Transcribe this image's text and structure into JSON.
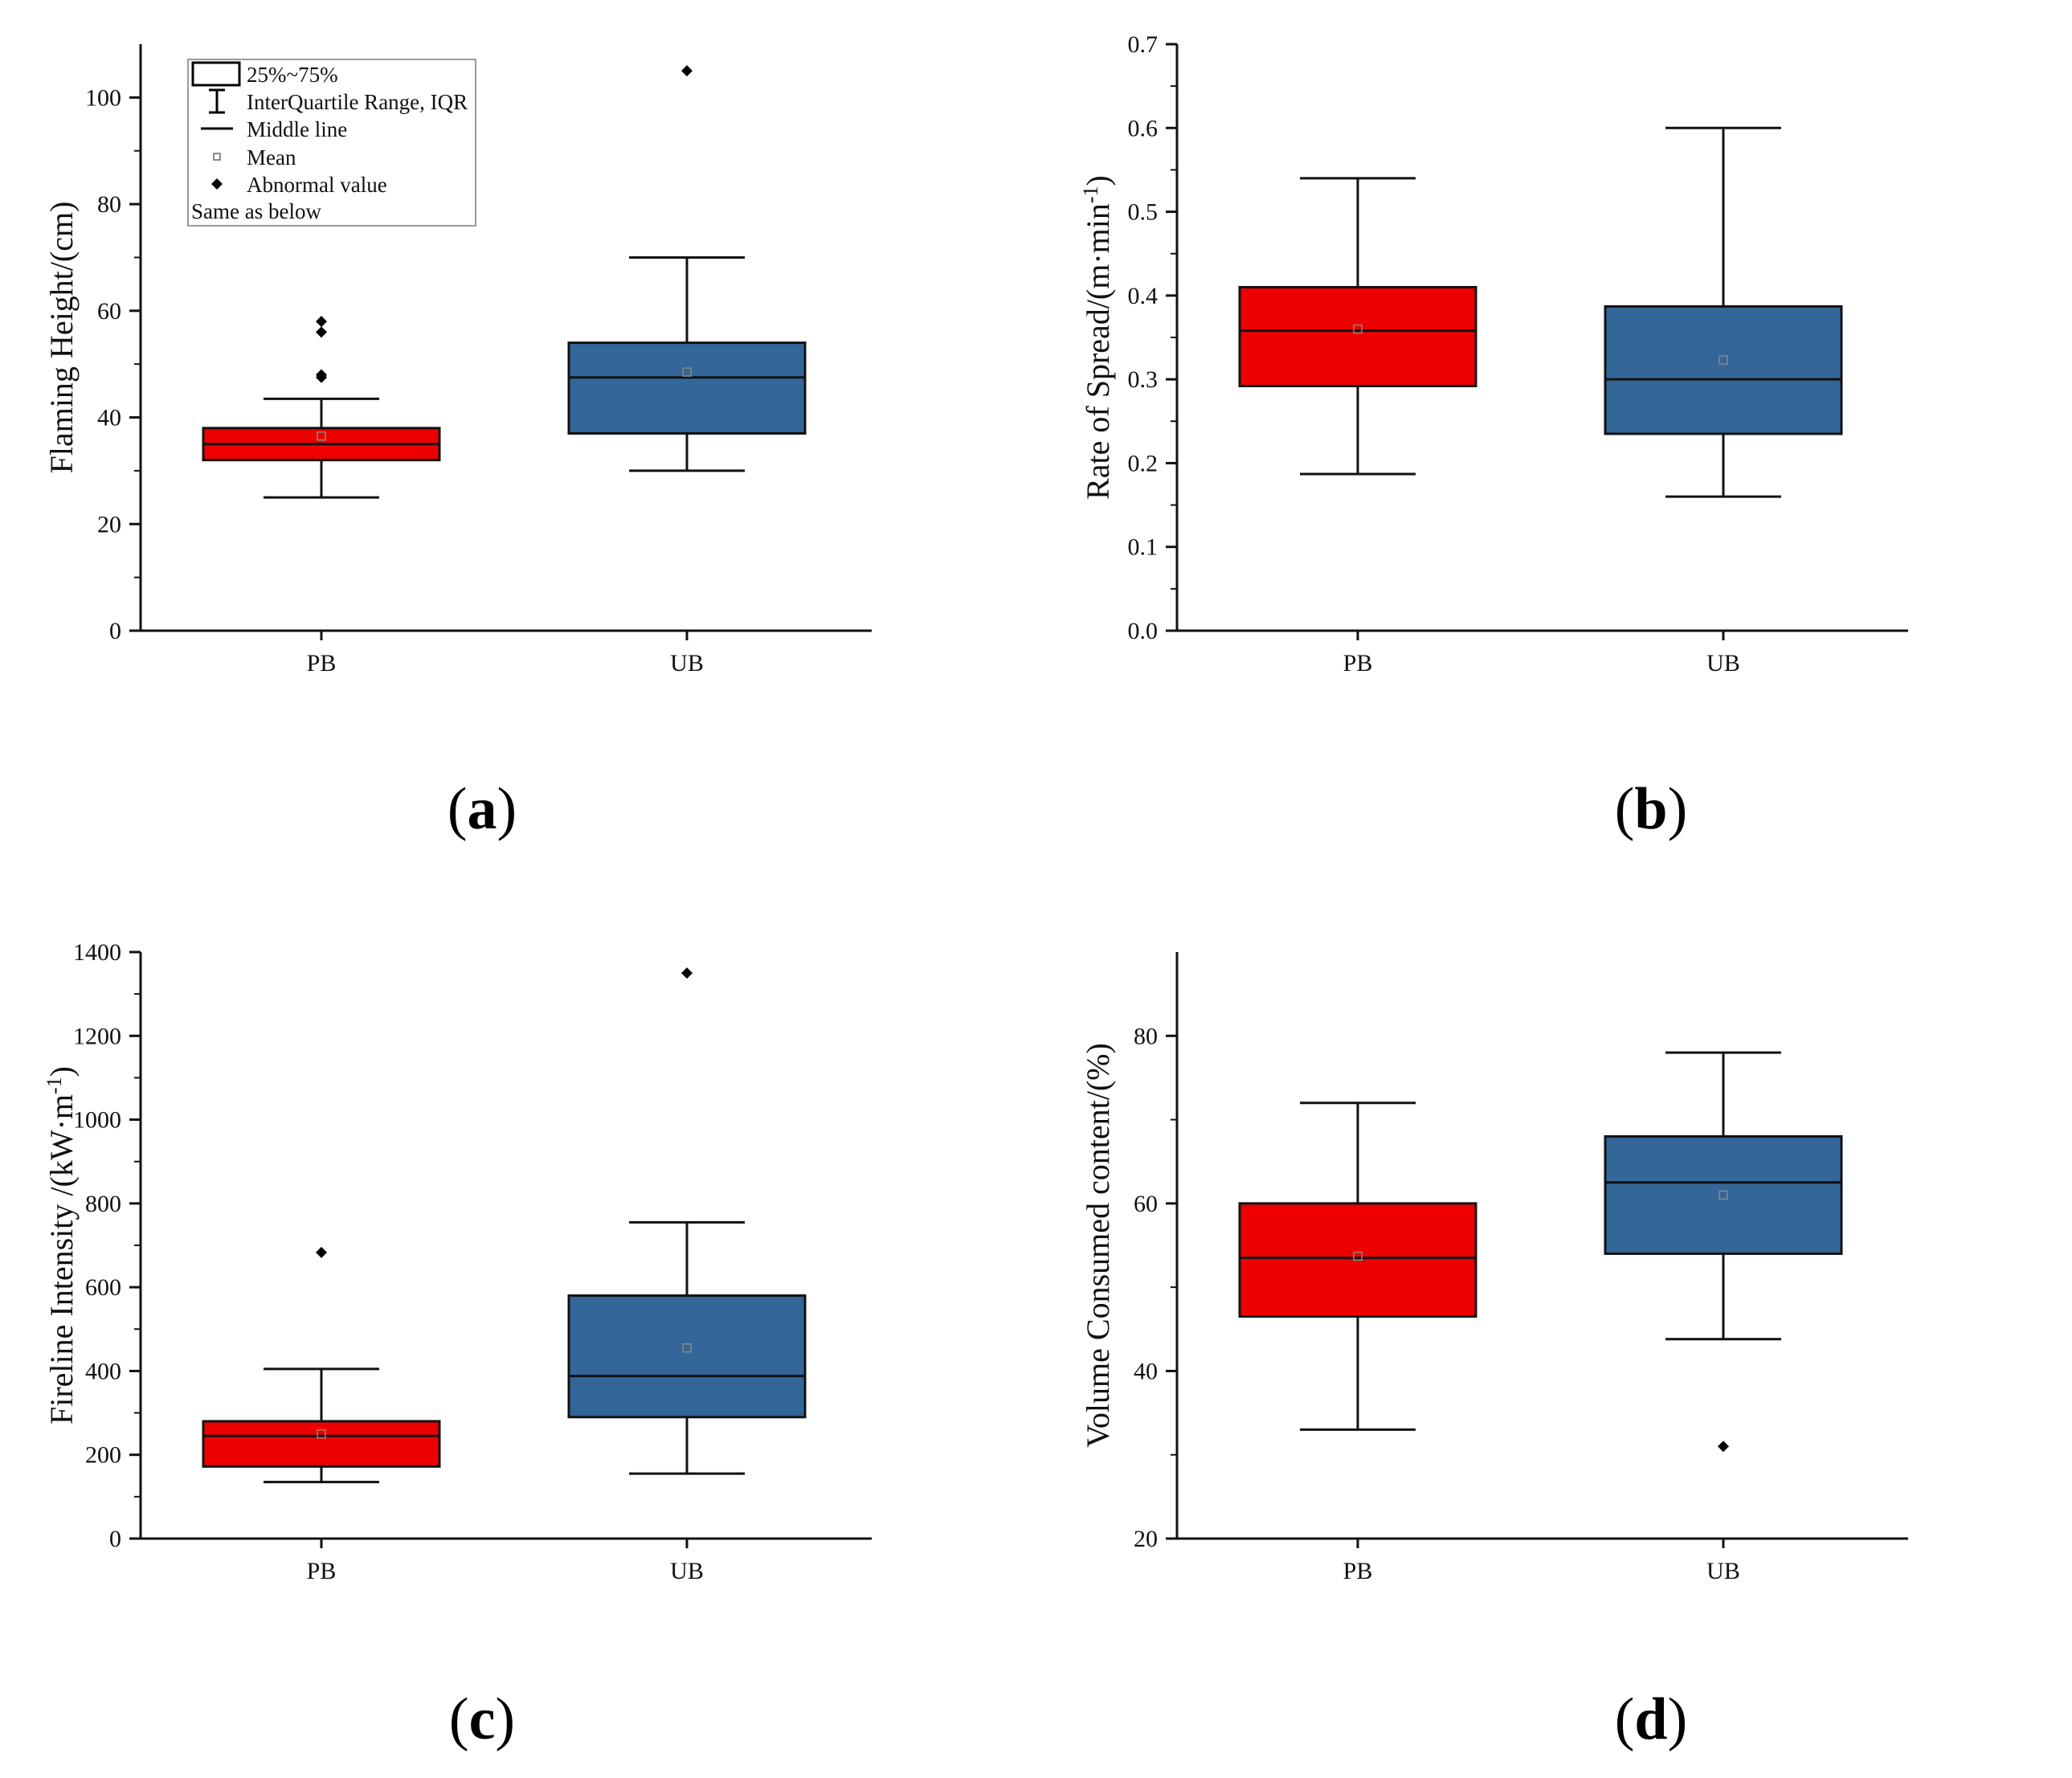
{
  "colors": {
    "pb": "#ee0000",
    "ub": "#336699",
    "axis": "#111111"
  },
  "legend": {
    "items": [
      {
        "symbol": "box",
        "label": "25%~75%"
      },
      {
        "symbol": "whisker",
        "label": "InterQuartile Range, IQR"
      },
      {
        "symbol": "line",
        "label": "Middle line"
      },
      {
        "symbol": "mean",
        "label": "Mean"
      },
      {
        "symbol": "outlier",
        "label": "Abnormal value"
      }
    ],
    "note": "Same as below"
  },
  "captions": {
    "a": "a",
    "b": "b",
    "c": "c",
    "d": "d"
  },
  "chart_data": [
    {
      "id": "a",
      "type": "box",
      "ylabel": "Flaming Height/(cm)",
      "ylabel_sup": "",
      "ylim": [
        0,
        110
      ],
      "yticks": [
        0,
        20,
        40,
        60,
        80,
        100
      ],
      "ytick_decimals": 0,
      "categories": [
        "PB",
        "UB"
      ],
      "boxes": [
        {
          "name": "PB",
          "color": "#ee0000",
          "q1": 32,
          "median": 35,
          "q3": 38,
          "mean": 36.5,
          "whisker_low": 25,
          "whisker_high": 43.5,
          "outliers": [
            47.5,
            48,
            56,
            58
          ]
        },
        {
          "name": "UB",
          "color": "#336699",
          "q1": 37,
          "median": 47.5,
          "q3": 54,
          "mean": 48.5,
          "whisker_low": 30,
          "whisker_high": 70,
          "outliers": [
            105
          ]
        }
      ]
    },
    {
      "id": "b",
      "type": "box",
      "ylabel": "Rate of Spread/(m·min",
      "ylabel_sup": "-1",
      "ylabel_end": ")",
      "ylim": [
        0,
        0.7
      ],
      "yticks": [
        0.0,
        0.1,
        0.2,
        0.3,
        0.4,
        0.5,
        0.6,
        0.7
      ],
      "ytick_decimals": 1,
      "categories": [
        "PB",
        "UB"
      ],
      "boxes": [
        {
          "name": "PB",
          "color": "#ee0000",
          "q1": 0.292,
          "median": 0.358,
          "q3": 0.41,
          "mean": 0.36,
          "whisker_low": 0.187,
          "whisker_high": 0.54,
          "outliers": []
        },
        {
          "name": "UB",
          "color": "#336699",
          "q1": 0.235,
          "median": 0.3,
          "q3": 0.387,
          "mean": 0.323,
          "whisker_low": 0.16,
          "whisker_high": 0.6,
          "outliers": []
        }
      ]
    },
    {
      "id": "c",
      "type": "box",
      "ylabel": "Fireline Intensity /(kW·m",
      "ylabel_sup": "-1",
      "ylabel_end": ")",
      "ylim": [
        0,
        1400
      ],
      "yticks": [
        0,
        200,
        400,
        600,
        800,
        1000,
        1200,
        1400
      ],
      "ytick_decimals": 0,
      "categories": [
        "PB",
        "UB"
      ],
      "boxes": [
        {
          "name": "PB",
          "color": "#ee0000",
          "q1": 172,
          "median": 245,
          "q3": 280,
          "mean": 250,
          "whisker_low": 135,
          "whisker_high": 405,
          "outliers": [
            683
          ]
        },
        {
          "name": "UB",
          "color": "#336699",
          "q1": 290,
          "median": 388,
          "q3": 580,
          "mean": 455,
          "whisker_low": 155,
          "whisker_high": 755,
          "outliers": [
            1350
          ]
        }
      ]
    },
    {
      "id": "d",
      "type": "box",
      "ylabel": "Volume Consumed content/(%)",
      "ylabel_sup": "",
      "ylim": [
        20,
        90
      ],
      "yticks": [
        20,
        40,
        60,
        80
      ],
      "ytick_decimals": 0,
      "categories": [
        "PB",
        "UB"
      ],
      "boxes": [
        {
          "name": "PB",
          "color": "#ee0000",
          "q1": 46.5,
          "median": 53.5,
          "q3": 60,
          "mean": 53.7,
          "whisker_low": 33,
          "whisker_high": 72,
          "outliers": []
        },
        {
          "name": "UB",
          "color": "#336699",
          "q1": 54,
          "median": 62.5,
          "q3": 68,
          "mean": 61,
          "whisker_low": 43.8,
          "whisker_high": 78,
          "outliers": [
            31
          ]
        }
      ]
    }
  ]
}
